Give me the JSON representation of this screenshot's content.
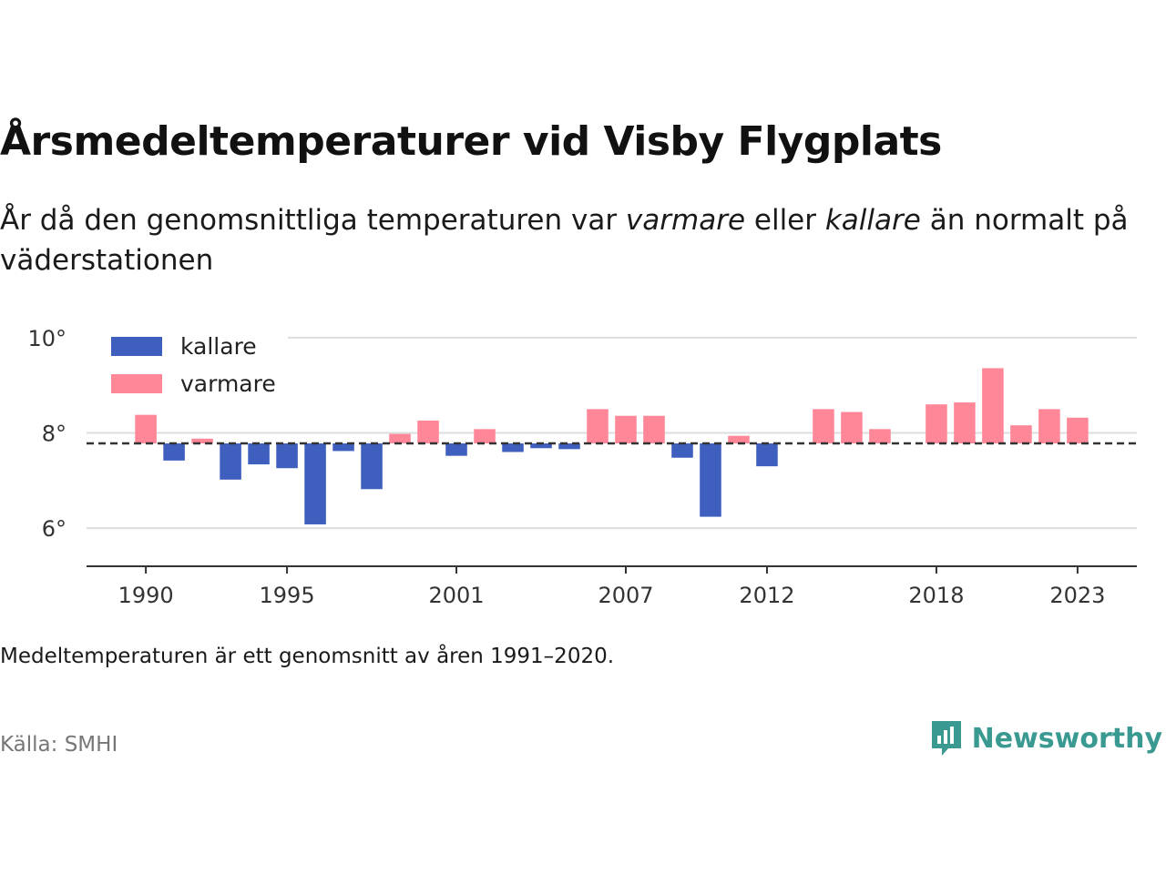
{
  "title": "Årsmedeltemperaturer vid Visby Flygplats",
  "subtitle": {
    "part1": "År då den genomsnittliga temperaturen var ",
    "warm_word": "varmare",
    "part2": " eller ",
    "cold_word": "kallare",
    "part3": " än normalt på väderstationen"
  },
  "note": "Medeltemperaturen är ett genomsnitt av åren 1991–2020.",
  "source": "Källa: SMHI",
  "brand": "Newsworthy",
  "colors": {
    "cold": "#3f5fbf",
    "warm": "#ff8797",
    "grid": "#dddddd",
    "axis": "#333333",
    "baseline": "#333333",
    "brand": "#3a9a92"
  },
  "chart_data": {
    "type": "bar",
    "baseline": 7.78,
    "ylim": [
      5.2,
      10.4
    ],
    "xlim": [
      1987.9,
      2025.1
    ],
    "y_ticks": [
      {
        "value": 6,
        "label": "6°"
      },
      {
        "value": 8,
        "label": "8°"
      },
      {
        "value": 10,
        "label": "10°"
      }
    ],
    "x_ticks": [
      1990,
      1995,
      2001,
      2007,
      2012,
      2018,
      2023
    ],
    "grid": true,
    "legend": {
      "position": "top-left",
      "items": [
        {
          "key": "cold",
          "label": "kallare"
        },
        {
          "key": "warm",
          "label": "varmare"
        }
      ]
    },
    "years": [
      1990,
      1991,
      1992,
      1993,
      1994,
      1995,
      1996,
      1997,
      1998,
      1999,
      2000,
      2001,
      2002,
      2003,
      2004,
      2005,
      2006,
      2007,
      2008,
      2009,
      2010,
      2011,
      2012,
      2013,
      2014,
      2015,
      2016,
      2017,
      2018,
      2019,
      2020,
      2021,
      2022,
      2023
    ],
    "values": [
      8.38,
      7.42,
      7.88,
      7.02,
      7.34,
      7.26,
      6.08,
      7.62,
      6.82,
      7.98,
      8.26,
      7.52,
      8.08,
      7.6,
      7.68,
      7.66,
      8.5,
      8.36,
      8.36,
      7.48,
      6.24,
      7.94,
      7.3,
      null,
      8.5,
      8.44,
      8.08,
      null,
      8.6,
      8.64,
      9.36,
      8.16,
      8.5,
      8.32
    ]
  }
}
